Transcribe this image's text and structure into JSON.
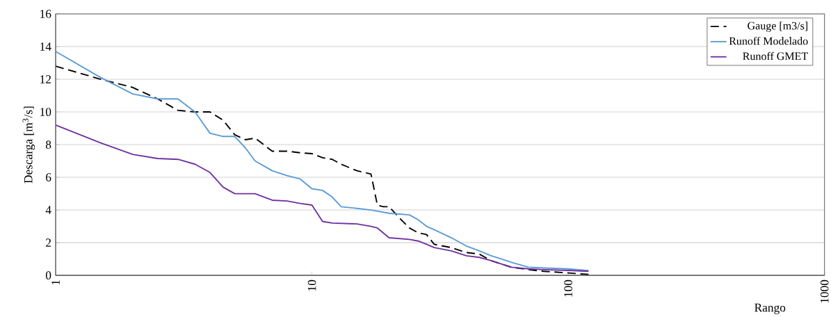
{
  "chart_data": {
    "type": "line",
    "xlabel": "Rango",
    "ylabel": "Descarga [m$^{3}$/s]",
    "log": "x",
    "xlim": [
      1,
      1000
    ],
    "xticks": [
      1,
      10,
      100,
      1000
    ],
    "ylim": [
      0,
      16
    ],
    "yticks": [
      0,
      2,
      4,
      6,
      8,
      10,
      12,
      14,
      16
    ],
    "grid": "y",
    "legend": "top right",
    "marker": "none",
    "series": [
      {
        "name": "Gauge [m3/s]",
        "color": "#000000",
        "line_style": "dashed",
        "x": [
          1,
          1.5,
          2,
          2.5,
          3,
          3.5,
          4,
          4.5,
          5,
          5.5,
          6,
          7,
          8,
          9,
          10,
          11,
          12,
          13,
          15,
          17,
          18,
          19,
          20,
          22,
          24,
          26,
          28,
          30,
          35,
          40,
          45,
          50,
          60,
          70,
          80,
          100,
          120
        ],
        "values": [
          12.8,
          12.0,
          11.5,
          10.8,
          10.1,
          10.0,
          10.0,
          9.5,
          8.6,
          8.3,
          8.4,
          7.6,
          7.6,
          7.5,
          7.45,
          7.2,
          7.1,
          6.8,
          6.4,
          6.2,
          4.3,
          4.2,
          4.2,
          3.5,
          2.9,
          2.6,
          2.5,
          1.9,
          1.7,
          1.4,
          1.3,
          0.9,
          0.5,
          0.35,
          0.25,
          0.15,
          0.06
        ]
      },
      {
        "name": "Runoff Modelado",
        "color": "#5b9bd5",
        "line_style": "solid",
        "x": [
          1,
          1.5,
          2,
          2.5,
          3,
          3.5,
          4,
          4.5,
          5,
          5.5,
          6,
          7,
          8,
          9,
          10,
          11,
          12,
          13,
          15,
          17,
          20,
          24,
          26,
          28,
          30,
          35,
          40,
          45,
          50,
          55,
          60,
          70,
          80,
          100,
          120
        ],
        "values": [
          13.7,
          12.1,
          11.1,
          10.8,
          10.8,
          10.0,
          8.7,
          8.5,
          8.5,
          7.8,
          7.0,
          6.4,
          6.1,
          5.9,
          5.3,
          5.2,
          4.8,
          4.2,
          4.1,
          4.0,
          3.8,
          3.7,
          3.4,
          3.0,
          2.8,
          2.3,
          1.8,
          1.5,
          1.2,
          1.0,
          0.8,
          0.5,
          0.45,
          0.4,
          0.3
        ]
      },
      {
        "name": "Runoff GMET",
        "color": "#7030a0",
        "line_style": "solid",
        "x": [
          1,
          1.5,
          2,
          2.5,
          3,
          3.5,
          4,
          4.5,
          5,
          6,
          7,
          8,
          9,
          10,
          11,
          12,
          15,
          17,
          18,
          20,
          24,
          26,
          28,
          30,
          35,
          40,
          45,
          50,
          60,
          70,
          80,
          100,
          120
        ],
        "values": [
          9.2,
          8.1,
          7.4,
          7.15,
          7.1,
          6.8,
          6.3,
          5.4,
          5.0,
          5.0,
          4.6,
          4.55,
          4.4,
          4.3,
          3.3,
          3.2,
          3.15,
          3.0,
          2.9,
          2.3,
          2.2,
          2.1,
          1.9,
          1.7,
          1.5,
          1.2,
          1.1,
          0.9,
          0.5,
          0.4,
          0.35,
          0.3,
          0.25
        ]
      }
    ]
  }
}
